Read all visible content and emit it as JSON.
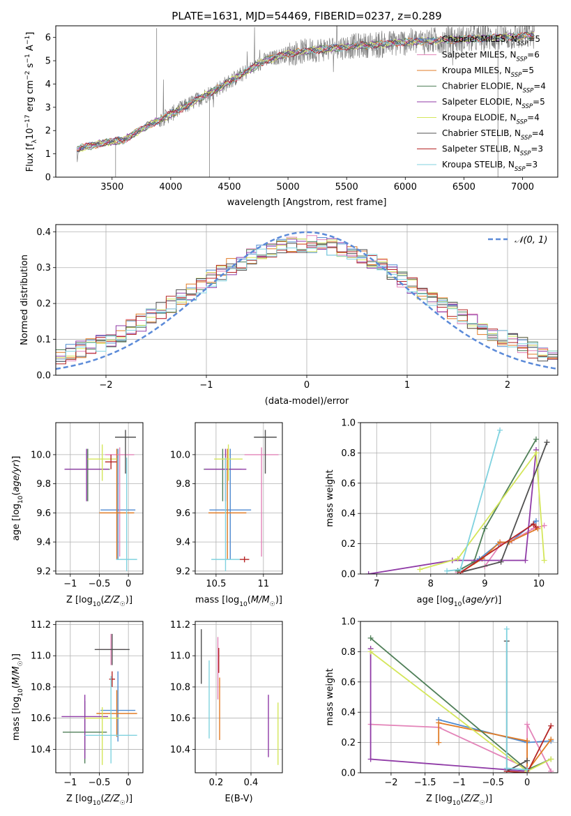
{
  "title": "PLATE=1631, MJD=54469, FIBERID=0237, z=0.289",
  "colors": {
    "Chabrier MILES": "#4e8ad0",
    "Salpeter MILES": "#e383b8",
    "Kroupa MILES": "#e07b25",
    "Chabrier ELODIE": "#4f7f58",
    "Salpeter ELODIE": "#8f3aa6",
    "Kroupa ELODIE": "#d4e65a",
    "Chabrier STELIB": "#505050",
    "Salpeter STELIB": "#b52525",
    "Kroupa STELIB": "#7fd2df",
    "data": "#7f7f7f",
    "normal": "#5b8ad8"
  },
  "chart_data": [
    {
      "type": "line",
      "id": "spectrum",
      "title": "PLATE=1631, MJD=54469, FIBERID=0237, z=0.289",
      "xlabel": "wavelength [Angstrom, rest frame]",
      "ylabel": "Flux [f_λ 10^-17 erg cm^-2 s^-1 A^-1]",
      "xlim": [
        3020,
        7300
      ],
      "ylim": [
        0,
        6.5
      ],
      "xticks": [
        3500,
        4000,
        4500,
        5000,
        5500,
        6000,
        6500,
        7000
      ],
      "yticks": [
        0,
        1,
        2,
        3,
        4,
        5,
        6
      ],
      "legend": [
        {
          "label": "Chabrier MILES, N",
          "sub": "SSP",
          "tail": "=5"
        },
        {
          "label": "Salpeter MILES, N",
          "sub": "SSP",
          "tail": "=6"
        },
        {
          "label": "Kroupa MILES, N",
          "sub": "SSP",
          "tail": "=5"
        },
        {
          "label": "Chabrier ELODIE, N",
          "sub": "SSP",
          "tail": "=4"
        },
        {
          "label": "Salpeter ELODIE, N",
          "sub": "SSP",
          "tail": "=5"
        },
        {
          "label": "Kroupa ELODIE, N",
          "sub": "SSP",
          "tail": "=4"
        },
        {
          "label": "Chabrier STELIB, N",
          "sub": "SSP",
          "tail": "=4"
        },
        {
          "label": "Salpeter STELIB, N",
          "sub": "SSP",
          "tail": "=3"
        },
        {
          "label": "Kroupa STELIB, N",
          "sub": "SSP",
          "tail": "=3"
        }
      ],
      "legend_position": "right",
      "continuum_knots": {
        "x": [
          3200,
          3400,
          3600,
          3800,
          4000,
          4200,
          4400,
          4600,
          4800,
          5000,
          5200,
          5400,
          5600,
          5800,
          6000,
          6200,
          6400,
          6600,
          6800,
          7000,
          7100
        ],
        "y": [
          1.2,
          1.45,
          1.6,
          2.2,
          2.7,
          3.25,
          3.8,
          4.4,
          5.0,
          5.3,
          5.45,
          5.55,
          5.65,
          5.7,
          5.8,
          5.85,
          5.9,
          5.95,
          6.0,
          6.05,
          6.1
        ]
      },
      "grid": false
    },
    {
      "type": "step",
      "id": "residuals",
      "xlabel": "(data-model)/error",
      "ylabel": "Normed distribution",
      "xlim": [
        -2.5,
        2.5
      ],
      "ylim": [
        0,
        0.42
      ],
      "xticks": [
        -2,
        -1,
        0,
        1,
        2
      ],
      "yticks": [
        0.0,
        0.1,
        0.2,
        0.3,
        0.4
      ],
      "bin_width": 0.1,
      "legend": [
        {
          "label": "𝒩(0, 1)",
          "style": "dashed"
        }
      ],
      "legend_position": "top-right",
      "grid": true
    },
    {
      "type": "scatter",
      "id": "age_vs_Z",
      "xlabel": "Z [log10(Z/Z⊙)]",
      "ylabel": "age [log10(age/yr)]",
      "xlim": [
        -1.25,
        0.25
      ],
      "ylim": [
        9.18,
        10.22
      ],
      "xticks": [
        -1.0,
        -0.5,
        0.0
      ],
      "yticks": [
        9.2,
        9.4,
        9.6,
        9.8,
        10.0
      ],
      "points": [
        {
          "model": "Chabrier MILES",
          "x": -0.18,
          "xerr": 0.3,
          "y": 9.62,
          "yerr": [
            0.34,
            0.42
          ]
        },
        {
          "model": "Salpeter MILES",
          "x": -0.15,
          "xerr": 0.25,
          "y": 10.0,
          "yerr": [
            0.7,
            0.05
          ]
        },
        {
          "model": "Kroupa MILES",
          "x": -0.2,
          "xerr": 0.3,
          "y": 9.6,
          "yerr": [
            0.32,
            0.44
          ]
        },
        {
          "model": "Chabrier ELODIE",
          "x": -0.7,
          "xerr": 0.38,
          "y": 9.9,
          "yerr": [
            0.22,
            0.14
          ]
        },
        {
          "model": "Salpeter ELODIE",
          "x": -0.72,
          "xerr": 0.38,
          "y": 9.9,
          "yerr": [
            0.22,
            0.14
          ]
        },
        {
          "model": "Kroupa ELODIE",
          "x": -0.45,
          "xerr": 0.25,
          "y": 9.97,
          "yerr": [
            0.15,
            0.1
          ]
        },
        {
          "model": "Chabrier STELIB",
          "x": -0.05,
          "xerr": 0.18,
          "y": 10.12,
          "yerr": [
            0.25,
            0.05
          ]
        },
        {
          "model": "Salpeter STELIB",
          "x": -0.3,
          "xerr": 0.1,
          "y": 9.95,
          "yerr": [
            0.05,
            0.05
          ]
        },
        {
          "model": "Kroupa STELIB",
          "x": -0.03,
          "xerr": 0.18,
          "y": 9.28,
          "yerr": [
            0.08,
            0.7
          ]
        }
      ],
      "grid": true
    },
    {
      "type": "scatter",
      "id": "age_vs_mass",
      "xlabel": "mass [log10(M/M⊙)]",
      "ylabel": "",
      "xlim": [
        10.28,
        11.2
      ],
      "ylim": [
        9.18,
        10.22
      ],
      "xticks": [
        10.5,
        11.0
      ],
      "yticks": [
        9.2,
        9.4,
        9.6,
        9.8,
        10.0
      ],
      "points": [
        {
          "model": "Chabrier MILES",
          "x": 10.65,
          "xerr": 0.22,
          "y": 9.62,
          "yerr": [
            0.34,
            0.42
          ]
        },
        {
          "model": "Salpeter MILES",
          "x": 10.98,
          "xerr": 0.18,
          "y": 10.0,
          "yerr": [
            0.7,
            0.05
          ]
        },
        {
          "model": "Kroupa MILES",
          "x": 10.62,
          "xerr": 0.2,
          "y": 9.6,
          "yerr": [
            0.32,
            0.44
          ]
        },
        {
          "model": "Chabrier ELODIE",
          "x": 10.57,
          "xerr": 0.2,
          "y": 9.9,
          "yerr": [
            0.22,
            0.14
          ]
        },
        {
          "model": "Salpeter ELODIE",
          "x": 10.6,
          "xerr": 0.22,
          "y": 9.9,
          "yerr": [
            0.22,
            0.14
          ]
        },
        {
          "model": "Kroupa ELODIE",
          "x": 10.63,
          "xerr": 0.15,
          "y": 9.97,
          "yerr": [
            0.15,
            0.1
          ]
        },
        {
          "model": "Chabrier STELIB",
          "x": 11.02,
          "xerr": 0.12,
          "y": 10.12,
          "yerr": [
            0.25,
            0.05
          ]
        },
        {
          "model": "Salpeter STELIB",
          "x": 10.8,
          "xerr": 0.05,
          "y": 9.28,
          "yerr": [
            0.02,
            0.02
          ]
        },
        {
          "model": "Kroupa STELIB",
          "x": 10.6,
          "xerr": 0.15,
          "y": 9.28,
          "yerr": [
            0.08,
            0.7
          ]
        }
      ],
      "grid": true
    },
    {
      "type": "line",
      "id": "massweight_vs_age",
      "xlabel": "age [log10(age/yr)]",
      "ylabel": "mass weight",
      "xlim": [
        6.7,
        10.35
      ],
      "ylim": [
        0,
        1.0
      ],
      "xticks": [
        7,
        8,
        9,
        10
      ],
      "yticks": [
        0.0,
        0.2,
        0.4,
        0.6,
        0.8,
        1.0
      ],
      "series": [
        {
          "model": "Chabrier MILES",
          "x": [
            8.5,
            8.9,
            9.25,
            9.5,
            9.95
          ],
          "y": [
            0.02,
            0.1,
            0.2,
            0.22,
            0.35
          ]
        },
        {
          "model": "Salpeter MILES",
          "x": [
            8.5,
            9.0,
            9.3,
            9.5,
            9.9,
            10.1
          ],
          "y": [
            0.01,
            0.05,
            0.2,
            0.22,
            0.3,
            0.32
          ]
        },
        {
          "model": "Kroupa MILES",
          "x": [
            8.55,
            8.95,
            9.28,
            9.45,
            9.98
          ],
          "y": [
            0.01,
            0.1,
            0.21,
            0.21,
            0.3
          ]
        },
        {
          "model": "Chabrier ELODIE",
          "x": [
            8.5,
            8.8,
            9.0,
            9.95
          ],
          "y": [
            0.02,
            0.08,
            0.3,
            0.89
          ]
        },
        {
          "model": "Salpeter ELODIE",
          "x": [
            6.85,
            8.4,
            9.75,
            9.95
          ],
          "y": [
            0.0,
            0.09,
            0.09,
            0.82
          ]
        },
        {
          "model": "Kroupa ELODIE",
          "x": [
            7.8,
            8.5,
            9.95,
            10.1
          ],
          "y": [
            0.03,
            0.1,
            0.8,
            0.09
          ]
        },
        {
          "model": "Chabrier STELIB",
          "x": [
            8.55,
            9.3,
            10.15
          ],
          "y": [
            0.01,
            0.08,
            0.87
          ]
        },
        {
          "model": "Salpeter STELIB",
          "x": [
            8.55,
            9.9,
            9.95
          ],
          "y": [
            0.01,
            0.33,
            0.31
          ]
        },
        {
          "model": "Kroupa STELIB",
          "x": [
            8.3,
            8.55,
            9.28
          ],
          "y": [
            0.02,
            0.03,
            0.95
          ]
        }
      ],
      "grid": true
    },
    {
      "type": "scatter",
      "id": "mass_vs_Z",
      "xlabel": "Z [log10(Z/Z⊙)]",
      "ylabel": "mass [log10(M/M⊙)]",
      "xlim": [
        -1.25,
        0.25
      ],
      "ylim": [
        10.25,
        11.22
      ],
      "xticks": [
        -1.0,
        -0.5,
        0.0
      ],
      "yticks": [
        10.4,
        10.6,
        10.8,
        11.0,
        11.2
      ],
      "points": [
        {
          "model": "Chabrier MILES",
          "x": -0.18,
          "xerr": 0.3,
          "y": 10.65,
          "yerr": [
            0.2,
            0.25
          ]
        },
        {
          "model": "Salpeter MILES",
          "x": -0.3,
          "xerr": 0.25,
          "y": 11.04,
          "yerr": [
            0.1,
            0.1
          ]
        },
        {
          "model": "Kroupa MILES",
          "x": -0.2,
          "xerr": 0.35,
          "y": 10.63,
          "yerr": [
            0.15,
            0.15
          ]
        },
        {
          "model": "Chabrier ELODIE",
          "x": -0.75,
          "xerr": 0.38,
          "y": 10.51,
          "yerr": [
            0.2,
            0.2
          ]
        },
        {
          "model": "Salpeter ELODIE",
          "x": -0.75,
          "xerr": 0.4,
          "y": 10.61,
          "yerr": [
            0.27,
            0.14
          ]
        },
        {
          "model": "Kroupa ELODIE",
          "x": -0.45,
          "xerr": 0.3,
          "y": 10.6,
          "yerr": [
            0.3,
            0.07
          ]
        },
        {
          "model": "Chabrier STELIB",
          "x": -0.28,
          "xerr": 0.3,
          "y": 11.04,
          "yerr": [
            0.1,
            0.1
          ]
        },
        {
          "model": "Salpeter STELIB",
          "x": -0.28,
          "xerr": 0.05,
          "y": 10.85,
          "yerr": [
            0.05,
            0.05
          ]
        },
        {
          "model": "Kroupa STELIB",
          "x": -0.3,
          "xerr": 0.45,
          "y": 10.49,
          "yerr": [
            0.18,
            0.38
          ]
        }
      ],
      "grid": true
    },
    {
      "type": "scatter",
      "id": "mass_vs_ebv",
      "xlabel": "E(B-V)",
      "ylabel": "",
      "xlim": [
        0.08,
        0.58
      ],
      "ylim": [
        10.25,
        11.22
      ],
      "xticks": [
        0.2,
        0.4
      ],
      "yticks": [
        10.4,
        10.6,
        10.8,
        11.0,
        11.2
      ],
      "points": [
        {
          "model": "Chabrier STELIB",
          "x": 0.115,
          "y": 10.99,
          "yerr": [
            0.17,
            0.18
          ]
        },
        {
          "model": "Kroupa STELIB",
          "x": 0.16,
          "y": 10.72,
          "yerr": [
            0.25,
            0.25
          ]
        },
        {
          "model": "Salpeter MILES",
          "x": 0.21,
          "y": 10.92,
          "yerr": [
            0.2,
            0.2
          ]
        },
        {
          "model": "Kroupa MILES",
          "x": 0.22,
          "y": 10.66,
          "yerr": [
            0.2,
            0.2
          ]
        },
        {
          "model": "Salpeter STELIB",
          "x": 0.215,
          "y": 10.97,
          "yerr": [
            0.08,
            0.08
          ]
        },
        {
          "model": "Salpeter ELODIE",
          "x": 0.5,
          "y": 10.55,
          "yerr": [
            0.2,
            0.2
          ]
        },
        {
          "model": "Kroupa ELODIE",
          "x": 0.555,
          "y": 10.5,
          "yerr": [
            0.2,
            0.2
          ]
        }
      ],
      "grid": true
    },
    {
      "type": "line",
      "id": "massweight_vs_Z",
      "xlabel": "Z [log10(Z/Z⊙)]",
      "ylabel": "mass weight",
      "xlim": [
        -2.45,
        0.45
      ],
      "ylim": [
        0,
        1.0
      ],
      "xticks": [
        -2.0,
        -1.5,
        -1.0,
        -0.5,
        0.0
      ],
      "yticks": [
        0.0,
        0.2,
        0.4,
        0.6,
        0.8,
        1.0
      ],
      "series": [
        {
          "model": "Chabrier MILES",
          "x": [
            -1.3,
            0.0,
            0.35
          ],
          "y": [
            0.35,
            0.2,
            0.21
          ]
        },
        {
          "model": "Salpeter MILES",
          "x": [
            -2.3,
            -1.3,
            0.0,
            0.0,
            0.35
          ],
          "y": [
            0.32,
            0.3,
            0.03,
            0.32,
            0.01
          ]
        },
        {
          "model": "Kroupa MILES",
          "x": [
            -1.3,
            -1.3,
            0.0,
            0.0,
            0.35
          ],
          "y": [
            0.2,
            0.33,
            0.21,
            0.01,
            0.22
          ]
        },
        {
          "model": "Chabrier ELODIE",
          "x": [
            -2.3,
            0.0,
            0.35
          ],
          "y": [
            0.89,
            0.02,
            0.09
          ]
        },
        {
          "model": "Salpeter ELODIE",
          "x": [
            -2.3,
            -2.3,
            0.0
          ],
          "y": [
            0.82,
            0.09,
            0.01
          ]
        },
        {
          "model": "Kroupa ELODIE",
          "x": [
            -2.3,
            0.0,
            0.35
          ],
          "y": [
            0.8,
            0.01,
            0.09
          ]
        },
        {
          "model": "Chabrier STELIB",
          "x": [
            -0.3,
            -0.3,
            0.0
          ],
          "y": [
            0.87,
            0.01,
            0.08
          ]
        },
        {
          "model": "Salpeter STELIB",
          "x": [
            -0.3,
            0.0,
            0.35
          ],
          "y": [
            0.01,
            0.0,
            0.31
          ]
        },
        {
          "model": "Kroupa STELIB",
          "x": [
            -0.3,
            -0.3,
            0.0
          ],
          "y": [
            0.95,
            0.03,
            0.02
          ]
        }
      ],
      "grid": true
    }
  ]
}
